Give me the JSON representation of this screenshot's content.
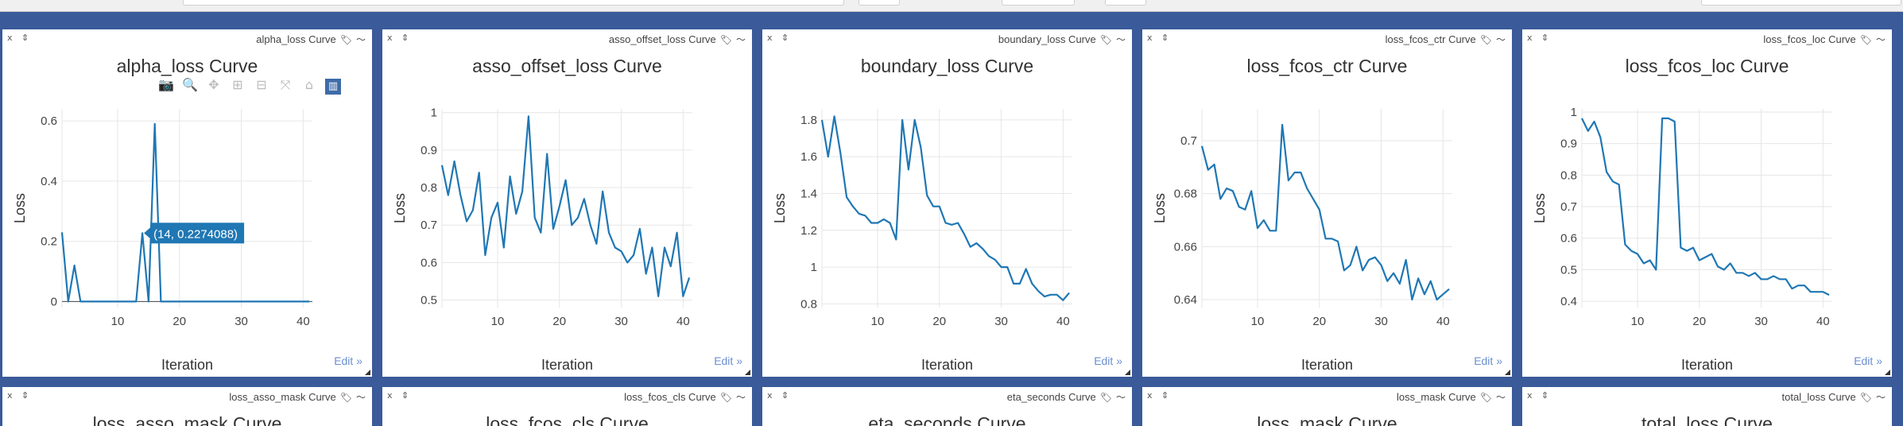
{
  "panels_row1": [
    {
      "header": "alpha_loss Curve",
      "title": "alpha_loss Curve",
      "edit": "Edit »",
      "chart_data": {
        "type": "line",
        "title": "alpha_loss Curve",
        "xlabel": "Iteration",
        "ylabel": "Loss",
        "xlim": [
          1,
          41.5
        ],
        "ylim": [
          -0.02,
          0.64
        ],
        "xticks": [
          10,
          20,
          30,
          40
        ],
        "yticks": [
          0,
          0.2,
          0.4,
          0.6
        ],
        "ytick_labels": [
          "0",
          "0.2",
          "0.4",
          "0.6"
        ],
        "grid": true,
        "color": "#1f77b4",
        "x": [
          1,
          2,
          3,
          4,
          5,
          6,
          7,
          8,
          9,
          10,
          11,
          12,
          13,
          14,
          15,
          16,
          17,
          18,
          19,
          20,
          21,
          22,
          23,
          24,
          25,
          26,
          27,
          28,
          29,
          30,
          31,
          32,
          33,
          34,
          35,
          36,
          37,
          38,
          39,
          40,
          41
        ],
        "y": [
          0.23,
          0,
          0.12,
          0,
          0,
          0,
          0,
          0,
          0,
          0,
          0,
          0,
          0,
          0.2274088,
          0,
          0.59,
          0,
          0,
          0,
          0,
          0,
          0,
          0,
          0,
          0,
          0,
          0,
          0,
          0,
          0,
          0,
          0,
          0,
          0,
          0,
          0,
          0,
          0,
          0,
          0,
          0
        ],
        "annotation": "(14, 0.2274088)"
      }
    },
    {
      "header": "asso_offset_loss Curve",
      "title": "asso_offset_loss Curve",
      "edit": "Edit »",
      "chart_data": {
        "type": "line",
        "title": "asso_offset_loss Curve",
        "xlabel": "Iteration",
        "ylabel": "Loss",
        "xlim": [
          1,
          41.5
        ],
        "ylim": [
          0.48,
          1.01
        ],
        "xticks": [
          10,
          20,
          30,
          40
        ],
        "yticks": [
          0.5,
          0.6,
          0.7,
          0.8,
          0.9,
          1
        ],
        "ytick_labels": [
          "0.5",
          "0.6",
          "0.7",
          "0.8",
          "0.9",
          "1"
        ],
        "grid": true,
        "color": "#1f77b4",
        "x": [
          1,
          2,
          3,
          4,
          5,
          6,
          7,
          8,
          9,
          10,
          11,
          12,
          13,
          14,
          15,
          16,
          17,
          18,
          19,
          20,
          21,
          22,
          23,
          24,
          25,
          26,
          27,
          28,
          29,
          30,
          31,
          32,
          33,
          34,
          35,
          36,
          37,
          38,
          39,
          40,
          41
        ],
        "y": [
          0.86,
          0.78,
          0.87,
          0.78,
          0.71,
          0.74,
          0.84,
          0.62,
          0.72,
          0.76,
          0.64,
          0.83,
          0.73,
          0.79,
          0.99,
          0.72,
          0.68,
          0.89,
          0.69,
          0.75,
          0.82,
          0.7,
          0.72,
          0.77,
          0.7,
          0.65,
          0.79,
          0.68,
          0.64,
          0.63,
          0.6,
          0.62,
          0.69,
          0.57,
          0.64,
          0.51,
          0.64,
          0.59,
          0.68,
          0.51,
          0.56
        ]
      }
    },
    {
      "header": "boundary_loss Curve",
      "title": "boundary_loss Curve",
      "edit": "Edit »",
      "chart_data": {
        "type": "line",
        "title": "boundary_loss Curve",
        "xlabel": "Iteration",
        "ylabel": "Loss",
        "xlim": [
          1,
          41.5
        ],
        "ylim": [
          0.78,
          1.86
        ],
        "xticks": [
          10,
          20,
          30,
          40
        ],
        "yticks": [
          0.8,
          1,
          1.2,
          1.4,
          1.6,
          1.8
        ],
        "ytick_labels": [
          "0.8",
          "1",
          "1.2",
          "1.4",
          "1.6",
          "1.8"
        ],
        "grid": true,
        "color": "#1f77b4",
        "x": [
          1,
          2,
          3,
          4,
          5,
          6,
          7,
          8,
          9,
          10,
          11,
          12,
          13,
          14,
          15,
          16,
          17,
          18,
          19,
          20,
          21,
          22,
          23,
          24,
          25,
          26,
          27,
          28,
          29,
          30,
          31,
          32,
          33,
          34,
          35,
          36,
          37,
          38,
          39,
          40,
          41
        ],
        "y": [
          1.8,
          1.6,
          1.82,
          1.62,
          1.38,
          1.33,
          1.29,
          1.28,
          1.24,
          1.24,
          1.26,
          1.24,
          1.15,
          1.8,
          1.53,
          1.8,
          1.65,
          1.39,
          1.33,
          1.33,
          1.24,
          1.23,
          1.24,
          1.18,
          1.11,
          1.13,
          1.1,
          1.06,
          1.04,
          1.0,
          1.0,
          0.91,
          0.91,
          0.99,
          0.91,
          0.87,
          0.84,
          0.85,
          0.85,
          0.82,
          0.86
        ]
      }
    },
    {
      "header": "loss_fcos_ctr Curve",
      "title": "loss_fcos_ctr Curve",
      "edit": "Edit »",
      "chart_data": {
        "type": "line",
        "title": "loss_fcos_ctr Curve",
        "xlabel": "Iteration",
        "ylabel": "Loss",
        "xlim": [
          1,
          41.5
        ],
        "ylim": [
          0.637,
          0.712
        ],
        "xticks": [
          10,
          20,
          30,
          40
        ],
        "yticks": [
          0.64,
          0.66,
          0.68,
          0.7
        ],
        "ytick_labels": [
          "0.64",
          "0.66",
          "0.68",
          "0.7"
        ],
        "grid": true,
        "color": "#1f77b4",
        "x": [
          1,
          2,
          3,
          4,
          5,
          6,
          7,
          8,
          9,
          10,
          11,
          12,
          13,
          14,
          15,
          16,
          17,
          18,
          19,
          20,
          21,
          22,
          23,
          24,
          25,
          26,
          27,
          28,
          29,
          30,
          31,
          32,
          33,
          34,
          35,
          36,
          37,
          38,
          39,
          40,
          41
        ],
        "y": [
          0.698,
          0.689,
          0.691,
          0.678,
          0.682,
          0.681,
          0.675,
          0.674,
          0.681,
          0.667,
          0.67,
          0.666,
          0.666,
          0.706,
          0.685,
          0.688,
          0.688,
          0.682,
          0.678,
          0.674,
          0.663,
          0.663,
          0.662,
          0.651,
          0.653,
          0.66,
          0.651,
          0.655,
          0.656,
          0.653,
          0.647,
          0.65,
          0.646,
          0.655,
          0.64,
          0.648,
          0.642,
          0.647,
          0.64,
          0.642,
          0.644
        ]
      }
    },
    {
      "header": "loss_fcos_loc Curve",
      "title": "loss_fcos_loc Curve",
      "edit": "Edit »",
      "chart_data": {
        "type": "line",
        "title": "loss_fcos_loc Curve",
        "xlabel": "Iteration",
        "ylabel": "Loss",
        "xlim": [
          1,
          41.5
        ],
        "ylim": [
          0.38,
          1.01
        ],
        "xticks": [
          10,
          20,
          30,
          40
        ],
        "yticks": [
          0.4,
          0.5,
          0.6,
          0.7,
          0.8,
          0.9,
          1
        ],
        "ytick_labels": [
          "0.4",
          "0.5",
          "0.6",
          "0.7",
          "0.8",
          "0.9",
          "1"
        ],
        "grid": true,
        "color": "#1f77b4",
        "x": [
          1,
          2,
          3,
          4,
          5,
          6,
          7,
          8,
          9,
          10,
          11,
          12,
          13,
          14,
          15,
          16,
          17,
          18,
          19,
          20,
          21,
          22,
          23,
          24,
          25,
          26,
          27,
          28,
          29,
          30,
          31,
          32,
          33,
          34,
          35,
          36,
          37,
          38,
          39,
          40,
          41
        ],
        "y": [
          0.98,
          0.94,
          0.97,
          0.92,
          0.81,
          0.78,
          0.77,
          0.58,
          0.56,
          0.55,
          0.52,
          0.53,
          0.5,
          0.98,
          0.98,
          0.97,
          0.57,
          0.56,
          0.57,
          0.53,
          0.54,
          0.55,
          0.51,
          0.5,
          0.52,
          0.49,
          0.49,
          0.48,
          0.49,
          0.47,
          0.47,
          0.48,
          0.47,
          0.47,
          0.44,
          0.45,
          0.45,
          0.43,
          0.43,
          0.43,
          0.42
        ]
      }
    }
  ],
  "panels_row2": [
    {
      "header": "loss_asso_mask Curve",
      "title": "loss_asso_mask Curve"
    },
    {
      "header": "loss_fcos_cls Curve",
      "title": "loss_fcos_cls Curve"
    },
    {
      "header": "eta_seconds Curve",
      "title": "eta_seconds Curve"
    },
    {
      "header": "loss_mask Curve",
      "title": "loss_mask Curve"
    },
    {
      "header": "total_loss Curve",
      "title": "total_loss Curve"
    }
  ],
  "panel_controls": "x ⇕",
  "modebar_icons": [
    "camera-icon",
    "zoom-icon",
    "pan-icon",
    "zoom-in-icon",
    "zoom-out-icon",
    "autoscale-icon",
    "home-icon",
    "plotly-logo-icon"
  ]
}
